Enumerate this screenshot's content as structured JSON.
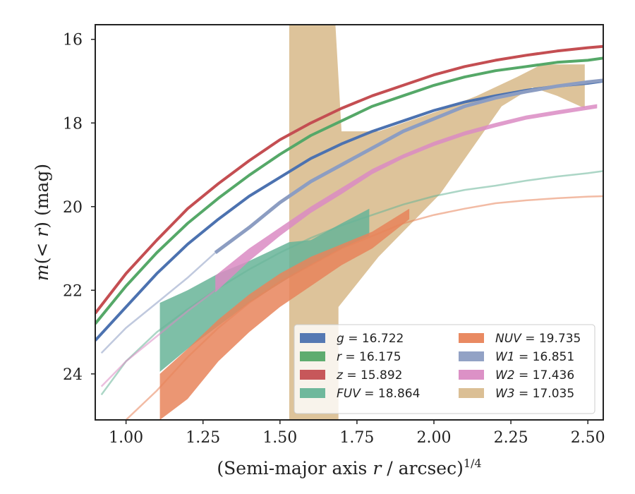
{
  "chart_data": {
    "type": "line",
    "xlabel": "(Semi-major axis r / arcsec)^{1/4}",
    "ylabel": "m(< r) (mag)",
    "xlim": [
      0.9,
      2.55
    ],
    "ylim": [
      25.1,
      15.65
    ],
    "y_inverted": true,
    "x_ticks": [
      "1.00",
      "1.25",
      "1.50",
      "1.75",
      "2.00",
      "2.25",
      "2.50"
    ],
    "x_tick_values": [
      1.0,
      1.25,
      1.5,
      1.75,
      2.0,
      2.25,
      2.5
    ],
    "y_ticks": [
      "16",
      "18",
      "20",
      "22",
      "24"
    ],
    "y_tick_values": [
      16,
      18,
      20,
      22,
      24
    ],
    "grid": false,
    "legend_position": "lower-right",
    "series": [
      {
        "name": "g = 16.722",
        "color": "#4c72b0",
        "style": "curve",
        "width": 4,
        "points": [
          [
            0.9,
            23.2
          ],
          [
            1.0,
            22.4
          ],
          [
            1.1,
            21.6
          ],
          [
            1.2,
            20.9
          ],
          [
            1.3,
            20.3
          ],
          [
            1.4,
            19.75
          ],
          [
            1.5,
            19.3
          ],
          [
            1.6,
            18.85
          ],
          [
            1.7,
            18.5
          ],
          [
            1.8,
            18.2
          ],
          [
            1.9,
            17.95
          ],
          [
            2.0,
            17.7
          ],
          [
            2.1,
            17.5
          ],
          [
            2.2,
            17.35
          ],
          [
            2.3,
            17.22
          ],
          [
            2.4,
            17.12
          ],
          [
            2.5,
            17.05
          ],
          [
            2.55,
            17.0
          ]
        ]
      },
      {
        "name": "r = 16.175",
        "color": "#55a868",
        "style": "curve",
        "width": 4,
        "points": [
          [
            0.9,
            22.8
          ],
          [
            1.0,
            21.9
          ],
          [
            1.1,
            21.1
          ],
          [
            1.2,
            20.4
          ],
          [
            1.3,
            19.8
          ],
          [
            1.4,
            19.25
          ],
          [
            1.5,
            18.75
          ],
          [
            1.6,
            18.3
          ],
          [
            1.7,
            17.95
          ],
          [
            1.8,
            17.6
          ],
          [
            1.9,
            17.35
          ],
          [
            2.0,
            17.1
          ],
          [
            2.1,
            16.9
          ],
          [
            2.2,
            16.75
          ],
          [
            2.3,
            16.65
          ],
          [
            2.4,
            16.55
          ],
          [
            2.5,
            16.5
          ],
          [
            2.55,
            16.45
          ]
        ]
      },
      {
        "name": "z = 15.892",
        "color": "#c44e52",
        "style": "curve",
        "width": 4,
        "points": [
          [
            0.9,
            22.55
          ],
          [
            1.0,
            21.6
          ],
          [
            1.1,
            20.8
          ],
          [
            1.2,
            20.05
          ],
          [
            1.3,
            19.45
          ],
          [
            1.4,
            18.9
          ],
          [
            1.5,
            18.4
          ],
          [
            1.6,
            18.0
          ],
          [
            1.7,
            17.65
          ],
          [
            1.8,
            17.35
          ],
          [
            1.9,
            17.1
          ],
          [
            2.0,
            16.85
          ],
          [
            2.1,
            16.65
          ],
          [
            2.2,
            16.5
          ],
          [
            2.3,
            16.38
          ],
          [
            2.4,
            16.28
          ],
          [
            2.5,
            16.2
          ],
          [
            2.55,
            16.17
          ]
        ]
      },
      {
        "name": "FUV = 18.864",
        "color": "#67b498",
        "style": "band",
        "points_upper": [
          [
            1.11,
            22.3
          ],
          [
            1.2,
            22.0
          ],
          [
            1.3,
            21.6
          ],
          [
            1.4,
            21.3
          ],
          [
            1.53,
            20.85
          ],
          [
            1.6,
            20.8
          ],
          [
            1.7,
            20.4
          ],
          [
            1.79,
            20.05
          ]
        ],
        "points_lower": [
          [
            1.11,
            23.95
          ],
          [
            1.2,
            23.4
          ],
          [
            1.3,
            22.85
          ],
          [
            1.4,
            22.3
          ],
          [
            1.53,
            21.7
          ],
          [
            1.6,
            21.4
          ],
          [
            1.7,
            21.0
          ],
          [
            1.79,
            20.7
          ]
        ],
        "extension": [
          [
            0.92,
            24.5
          ],
          [
            1.0,
            23.7
          ],
          [
            1.1,
            23.0
          ],
          [
            1.2,
            22.45
          ],
          [
            1.3,
            21.95
          ],
          [
            1.4,
            21.5
          ],
          [
            1.5,
            21.1
          ],
          [
            1.6,
            20.75
          ],
          [
            1.7,
            20.45
          ],
          [
            1.8,
            20.2
          ],
          [
            1.9,
            19.95
          ],
          [
            2.0,
            19.75
          ],
          [
            2.1,
            19.6
          ],
          [
            2.2,
            19.5
          ],
          [
            2.3,
            19.38
          ],
          [
            2.4,
            19.28
          ],
          [
            2.5,
            19.2
          ],
          [
            2.55,
            19.15
          ]
        ]
      },
      {
        "name": "NUV = 19.735",
        "color": "#e8845a",
        "style": "band",
        "points_upper": [
          [
            1.11,
            24.0
          ],
          [
            1.2,
            23.4
          ],
          [
            1.3,
            22.7
          ],
          [
            1.4,
            22.1
          ],
          [
            1.5,
            21.6
          ],
          [
            1.6,
            21.2
          ],
          [
            1.7,
            20.9
          ],
          [
            1.8,
            20.6
          ],
          [
            1.92,
            20.05
          ]
        ],
        "points_lower": [
          [
            1.11,
            25.1
          ],
          [
            1.2,
            24.6
          ],
          [
            1.3,
            23.7
          ],
          [
            1.4,
            23.0
          ],
          [
            1.5,
            22.4
          ],
          [
            1.6,
            21.9
          ],
          [
            1.7,
            21.4
          ],
          [
            1.8,
            21.0
          ],
          [
            1.92,
            20.3
          ]
        ],
        "extension": [
          [
            1.0,
            25.1
          ],
          [
            1.1,
            24.4
          ],
          [
            1.2,
            23.6
          ],
          [
            1.3,
            22.9
          ],
          [
            1.4,
            22.3
          ],
          [
            1.5,
            21.8
          ],
          [
            1.6,
            21.4
          ],
          [
            1.7,
            21.0
          ],
          [
            1.8,
            20.7
          ],
          [
            1.9,
            20.4
          ],
          [
            2.0,
            20.2
          ],
          [
            2.1,
            20.05
          ],
          [
            2.2,
            19.92
          ],
          [
            2.3,
            19.85
          ],
          [
            2.4,
            19.8
          ],
          [
            2.5,
            19.76
          ],
          [
            2.55,
            19.75
          ]
        ]
      },
      {
        "name": "W1 = 16.851",
        "color": "#8c9dc2",
        "style": "curve",
        "width": 5,
        "points": [
          [
            1.29,
            21.1
          ],
          [
            1.4,
            20.5
          ],
          [
            1.5,
            19.9
          ],
          [
            1.6,
            19.4
          ],
          [
            1.7,
            19.0
          ],
          [
            1.8,
            18.6
          ],
          [
            1.9,
            18.2
          ],
          [
            2.0,
            17.9
          ],
          [
            2.1,
            17.6
          ],
          [
            2.2,
            17.4
          ],
          [
            2.3,
            17.25
          ],
          [
            2.4,
            17.12
          ],
          [
            2.5,
            17.02
          ],
          [
            2.55,
            16.98
          ]
        ],
        "extension": [
          [
            0.92,
            23.5
          ],
          [
            1.0,
            22.9
          ],
          [
            1.1,
            22.3
          ],
          [
            1.2,
            21.7
          ],
          [
            1.29,
            21.1
          ]
        ]
      },
      {
        "name": "W2 = 17.436",
        "color": "#da8bc3",
        "style": "band",
        "points_upper": [
          [
            1.29,
            21.65
          ],
          [
            1.4,
            21.0
          ],
          [
            1.5,
            20.5
          ],
          [
            1.6,
            20.0
          ],
          [
            1.7,
            19.55
          ],
          [
            1.8,
            19.1
          ],
          [
            1.9,
            18.75
          ],
          [
            2.0,
            18.45
          ],
          [
            2.1,
            18.2
          ],
          [
            2.2,
            18.0
          ],
          [
            2.3,
            17.82
          ],
          [
            2.4,
            17.7
          ],
          [
            2.53,
            17.55
          ]
        ],
        "points_lower": [
          [
            1.29,
            22.05
          ],
          [
            1.4,
            21.3
          ],
          [
            1.5,
            20.7
          ],
          [
            1.6,
            20.15
          ],
          [
            1.7,
            19.7
          ],
          [
            1.8,
            19.22
          ],
          [
            1.9,
            18.85
          ],
          [
            2.0,
            18.55
          ],
          [
            2.1,
            18.3
          ],
          [
            2.2,
            18.1
          ],
          [
            2.3,
            17.92
          ],
          [
            2.4,
            17.8
          ],
          [
            2.53,
            17.65
          ]
        ],
        "extension": [
          [
            0.92,
            24.3
          ],
          [
            1.0,
            23.7
          ],
          [
            1.1,
            23.1
          ],
          [
            1.2,
            22.5
          ],
          [
            1.29,
            22.0
          ]
        ]
      },
      {
        "name": "W3 = 17.035",
        "color": "#d9bc8f",
        "style": "band"
      }
    ],
    "w3_band_polygon": [
      [
        1.53,
        15.65
      ],
      [
        1.68,
        15.65
      ],
      [
        1.7,
        18.2
      ],
      [
        1.82,
        18.2
      ],
      [
        2.02,
        17.7
      ],
      [
        2.14,
        17.35
      ],
      [
        2.27,
        16.9
      ],
      [
        2.35,
        16.6
      ],
      [
        2.49,
        16.6
      ],
      [
        2.49,
        17.65
      ],
      [
        2.4,
        17.35
      ],
      [
        2.32,
        17.15
      ],
      [
        2.22,
        17.6
      ],
      [
        2.02,
        19.7
      ],
      [
        1.82,
        21.2
      ],
      [
        1.69,
        22.4
      ],
      [
        1.69,
        25.1
      ],
      [
        1.53,
        25.1
      ]
    ],
    "legend": {
      "columns": [
        [
          {
            "label_sym": "g",
            "label_val": " = 16.722",
            "color": "#4c72b0"
          },
          {
            "label_sym": "r",
            "label_val": " = 16.175",
            "color": "#55a868"
          },
          {
            "label_sym": "z",
            "label_val": " = 15.892",
            "color": "#c44e52"
          },
          {
            "label_sym": "FUV",
            "label_val": " = 18.864",
            "color": "#67b498"
          }
        ],
        [
          {
            "label_sym": "NUV",
            "label_val": " = 19.735",
            "color": "#e8845a"
          },
          {
            "label_sym": "W1",
            "label_val": " = 16.851",
            "color": "#8c9dc2"
          },
          {
            "label_sym": "W2",
            "label_val": " = 17.436",
            "color": "#da8bc3"
          },
          {
            "label_sym": "W3",
            "label_val": " = 17.035",
            "color": "#d9bc8f"
          }
        ]
      ]
    }
  }
}
